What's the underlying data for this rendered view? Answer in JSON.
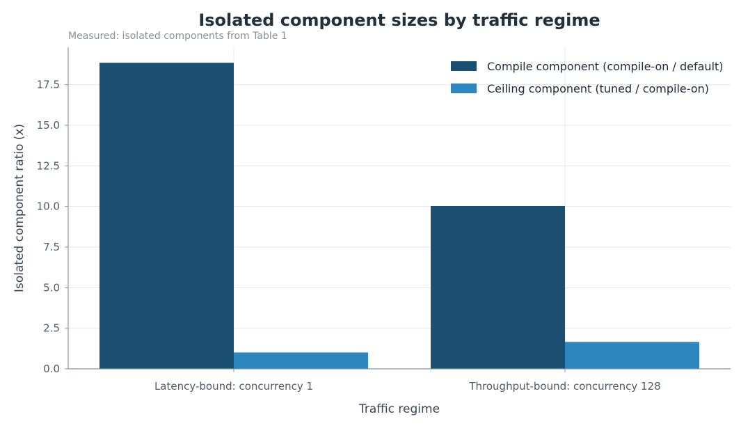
{
  "chart_data": {
    "type": "bar",
    "title": "Isolated component sizes by traffic regime",
    "subtitle": "Measured: isolated components from Table 1",
    "xlabel": "Traffic regime",
    "ylabel": "Isolated component ratio (x)",
    "categories": [
      "Latency-bound: concurrency 1",
      "Throughput-bound: concurrency 128"
    ],
    "series": [
      {
        "name": "Compile component (compile-on / default)",
        "values": [
          18.85,
          10.03
        ],
        "color": "#1b4f72"
      },
      {
        "name": "Ceiling component (tuned / compile-on)",
        "values": [
          1.01,
          1.66
        ],
        "color": "#2e86c1"
      }
    ],
    "ylim": [
      0,
      19.8
    ],
    "yticks": [
      "0.0",
      "2.5",
      "5.0",
      "7.5",
      "10.0",
      "12.5",
      "15.0",
      "17.5"
    ],
    "grid": true,
    "legend_position": "top-right"
  }
}
